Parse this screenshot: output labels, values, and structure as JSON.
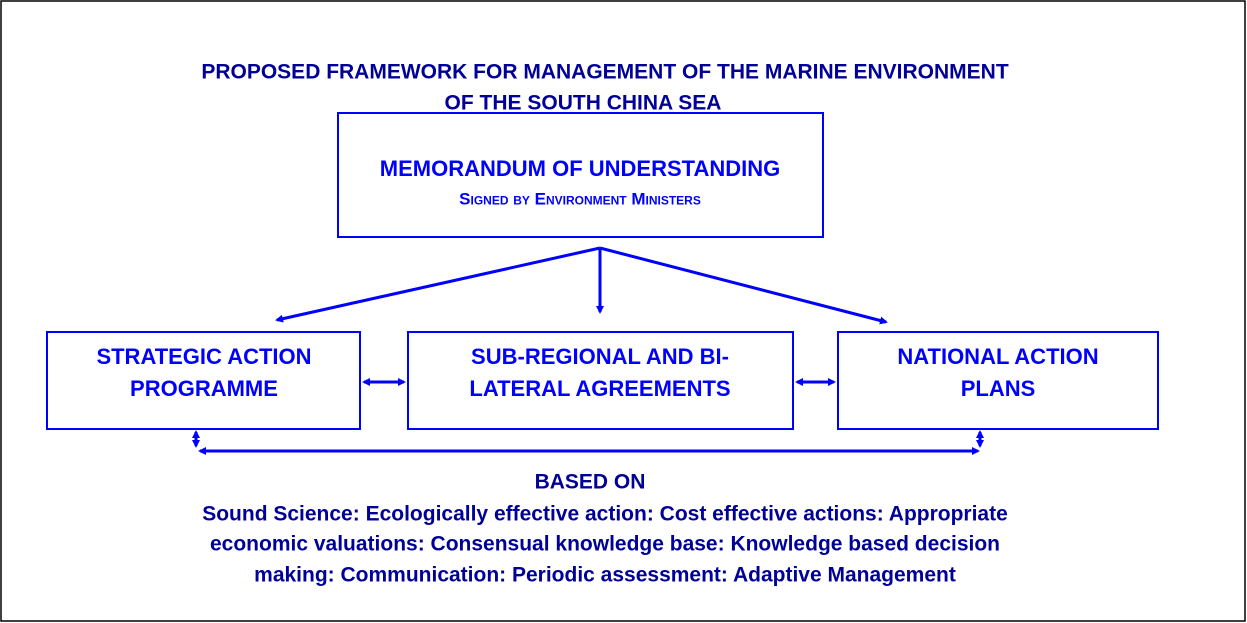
{
  "title": [
    "PROPOSED FRAMEWORK FOR MANAGEMENT OF THE MARINE ENVIRONMENT",
    "OF THE SOUTH CHINA SEA"
  ],
  "nodes": [
    {
      "label": [
        "MEMORANDUM OF UNDERSTANDING"
      ],
      "sublabel": "Signed by Environment Ministers"
    },
    {
      "label": [
        "STRATEGIC ACTION",
        "PROGRAMME"
      ]
    },
    {
      "label": [
        "SUB-REGIONAL AND BI-",
        "LATERAL AGREEMENTS"
      ]
    },
    {
      "label": [
        "NATIONAL ACTION",
        "PLANS"
      ]
    }
  ],
  "basis": {
    "heading": "BASED ON",
    "lines": [
      "Sound Science: Ecologically effective action: Cost effective actions: Appropriate",
      "economic valuations: Consensual knowledge base: Knowledge based decision",
      "making: Communication: Periodic assessment: Adaptive Management"
    ]
  }
}
